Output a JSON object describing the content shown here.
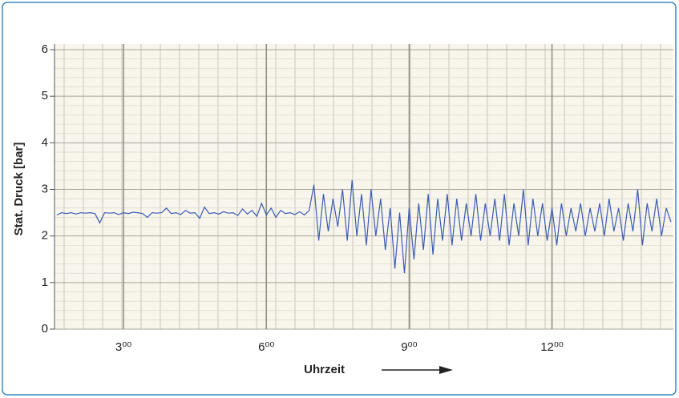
{
  "chart_data": {
    "type": "line",
    "y_label": "Stat. Druck [bar]",
    "x_label": "Uhrzeit",
    "x": [
      1.6,
      1.7,
      1.8,
      1.9,
      2.0,
      2.1,
      2.2,
      2.3,
      2.4,
      2.5,
      2.6,
      2.7,
      2.8,
      2.9,
      3.0,
      3.1,
      3.2,
      3.3,
      3.4,
      3.5,
      3.6,
      3.7,
      3.8,
      3.9,
      4.0,
      4.1,
      4.2,
      4.3,
      4.4,
      4.5,
      4.6,
      4.7,
      4.8,
      4.9,
      5.0,
      5.1,
      5.2,
      5.3,
      5.4,
      5.5,
      5.6,
      5.7,
      5.8,
      5.9,
      6.0,
      6.1,
      6.2,
      6.3,
      6.4,
      6.5,
      6.6,
      6.7,
      6.8,
      6.9,
      7.0,
      7.1,
      7.2,
      7.3,
      7.4,
      7.5,
      7.6,
      7.7,
      7.8,
      7.9,
      8.0,
      8.1,
      8.2,
      8.3,
      8.4,
      8.5,
      8.6,
      8.7,
      8.8,
      8.9,
      9.0,
      9.1,
      9.2,
      9.3,
      9.4,
      9.5,
      9.6,
      9.7,
      9.8,
      9.9,
      10.0,
      10.1,
      10.2,
      10.3,
      10.4,
      10.5,
      10.6,
      10.7,
      10.8,
      10.9,
      11.0,
      11.1,
      11.2,
      11.3,
      11.4,
      11.5,
      11.6,
      11.7,
      11.8,
      11.9,
      12.0,
      12.1,
      12.2,
      12.3,
      12.4,
      12.5,
      12.6,
      12.7,
      12.8,
      12.9,
      13.0,
      13.1,
      13.2,
      13.3,
      13.4,
      13.5,
      13.6,
      13.7,
      13.8,
      13.9,
      14.0,
      14.1,
      14.2,
      14.3,
      14.4,
      14.5
    ],
    "series": [
      {
        "color": "#3a5cb4",
        "values": [
          2.45,
          2.5,
          2.48,
          2.5,
          2.47,
          2.5,
          2.49,
          2.5,
          2.48,
          2.28,
          2.5,
          2.49,
          2.5,
          2.46,
          2.5,
          2.48,
          2.51,
          2.5,
          2.48,
          2.4,
          2.5,
          2.49,
          2.5,
          2.6,
          2.48,
          2.5,
          2.46,
          2.55,
          2.49,
          2.5,
          2.38,
          2.62,
          2.48,
          2.5,
          2.47,
          2.52,
          2.49,
          2.5,
          2.44,
          2.58,
          2.47,
          2.55,
          2.42,
          2.7,
          2.45,
          2.6,
          2.4,
          2.55,
          2.48,
          2.5,
          2.46,
          2.52,
          2.45,
          2.55,
          3.1,
          1.9,
          2.9,
          2.1,
          2.8,
          2.2,
          3.0,
          1.9,
          3.2,
          2.0,
          2.9,
          1.8,
          3.0,
          2.0,
          2.8,
          1.7,
          2.6,
          1.3,
          2.5,
          1.2,
          2.6,
          1.5,
          2.7,
          1.7,
          2.9,
          1.6,
          2.8,
          1.9,
          2.9,
          1.8,
          2.8,
          1.9,
          2.7,
          2.0,
          2.9,
          1.9,
          2.7,
          2.0,
          2.8,
          1.9,
          2.9,
          1.8,
          2.7,
          2.0,
          3.0,
          1.8,
          2.8,
          2.0,
          2.7,
          1.9,
          2.6,
          1.8,
          2.7,
          2.0,
          2.6,
          2.1,
          2.7,
          2.0,
          2.6,
          2.1,
          2.7,
          2.0,
          2.8,
          2.1,
          2.6,
          1.9,
          2.7,
          2.1,
          3.0,
          1.8,
          2.7,
          2.1,
          2.8,
          2.0,
          2.6,
          2.3
        ]
      }
    ],
    "xlim": [
      1.55,
      14.55
    ],
    "xticks": [
      {
        "value": 3,
        "label": "3⁰⁰"
      },
      {
        "value": 6,
        "label": "6⁰⁰"
      },
      {
        "value": 9,
        "label": "9⁰⁰"
      },
      {
        "value": 12,
        "label": "12⁰⁰"
      }
    ],
    "ylim": [
      0,
      6
    ],
    "yticks": [
      0,
      1,
      2,
      3,
      4,
      5,
      6
    ],
    "grid": true
  }
}
